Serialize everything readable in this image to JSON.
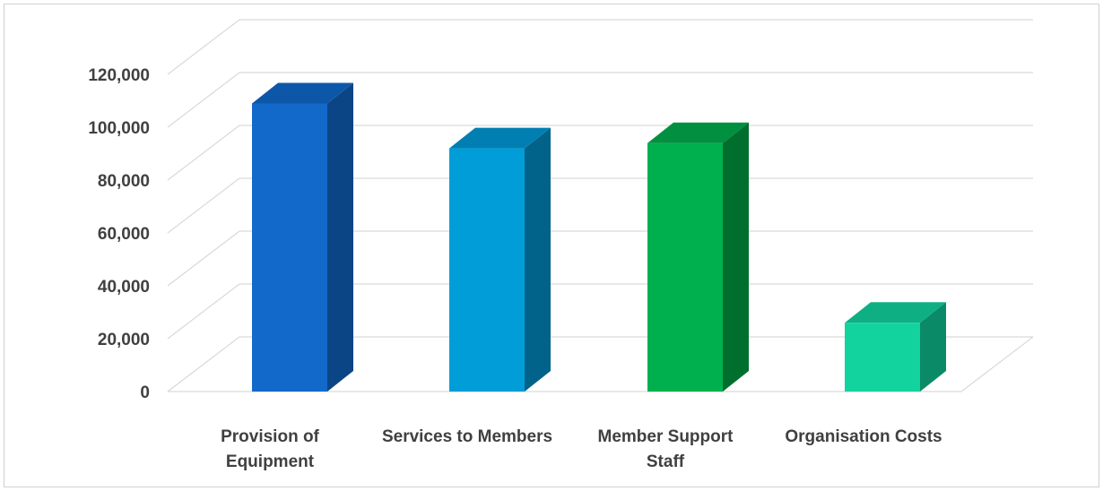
{
  "chart_data": {
    "type": "bar",
    "style": "3d-column",
    "categories": [
      [
        "Provision of",
        "Equipment"
      ],
      [
        "Services to Members"
      ],
      [
        "Member Support",
        "Staff"
      ],
      [
        "Organisation Costs"
      ]
    ],
    "values": [
      109000,
      92000,
      94000,
      26000
    ],
    "colors": [
      {
        "front": "#1369c9",
        "side": "#0b4585",
        "top": "#0d57a8"
      },
      {
        "front": "#019dd8",
        "side": "#01628a",
        "top": "#017fb2"
      },
      {
        "front": "#00b04f",
        "side": "#006f2e",
        "top": "#00903f"
      },
      {
        "front": "#12d39e",
        "side": "#0a8a66",
        "top": "#0eb083"
      }
    ],
    "ylim": [
      0,
      120000
    ],
    "yticks": [
      0,
      20000,
      40000,
      60000,
      80000,
      100000,
      120000
    ],
    "ytick_labels": [
      "0",
      "20,000",
      "40,000",
      "60,000",
      "80,000",
      "100,000",
      "120,000"
    ],
    "grid": true,
    "grid_color": "#d9d9d9",
    "title": "",
    "xlabel": "",
    "ylabel": ""
  }
}
